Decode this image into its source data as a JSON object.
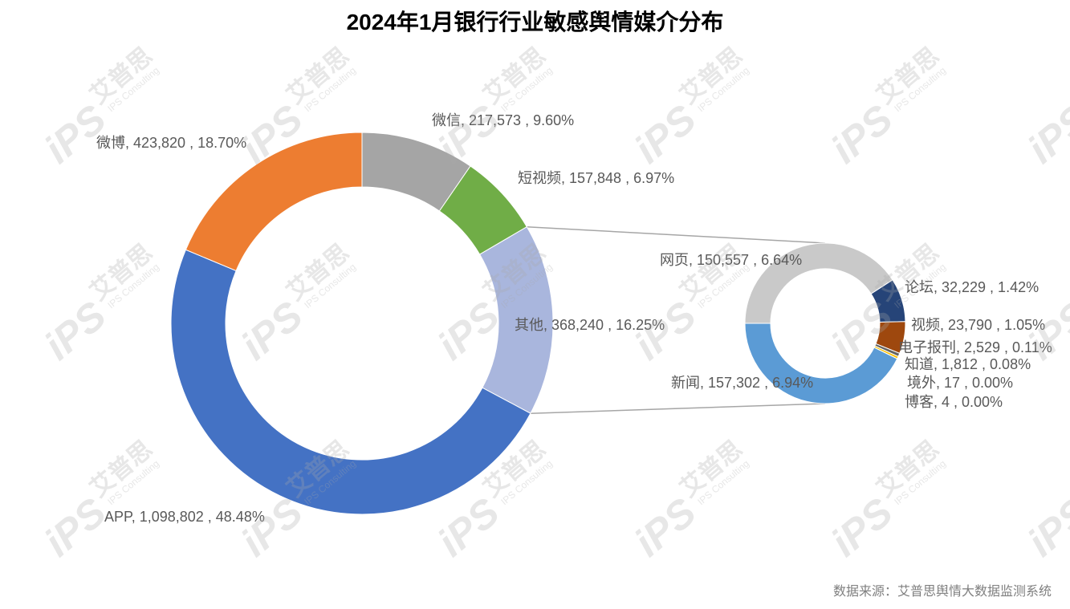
{
  "chart_data": {
    "type": "pie",
    "subtype": "doughnut with secondary doughnut",
    "title": "2024年1月银行行业敏感舆情媒介分布",
    "legend": "none",
    "primary": [
      {
        "name": "微信",
        "value": 217573,
        "percent": 9.6,
        "color": "#A5A5A5"
      },
      {
        "name": "短视频",
        "value": 157848,
        "percent": 6.97,
        "color": "#70AD47"
      },
      {
        "name": "其他",
        "value": 368240,
        "percent": 16.25,
        "color": "#A9B6DD",
        "expanded": true
      },
      {
        "name": "APP",
        "value": 1098802,
        "percent": 48.48,
        "color": "#4472C4"
      },
      {
        "name": "微博",
        "value": 423820,
        "percent": 18.7,
        "color": "#ED7D31"
      }
    ],
    "secondary": [
      {
        "name": "网页",
        "value": 150557,
        "percent": 6.64,
        "color": "#C9C9C9"
      },
      {
        "name": "论坛",
        "value": 32229,
        "percent": 1.42,
        "color": "#264478"
      },
      {
        "name": "视频",
        "value": 23790,
        "percent": 1.05,
        "color": "#9E480E"
      },
      {
        "name": "电子报刊",
        "value": 2529,
        "percent": 0.11,
        "color": "#636363"
      },
      {
        "name": "知道",
        "value": 1812,
        "percent": 0.08,
        "color": "#FFC000"
      },
      {
        "name": "境外",
        "value": 17,
        "percent": 0.0
      },
      {
        "name": "博客",
        "value": 4,
        "percent": 0.0
      },
      {
        "name": "新闻",
        "value": 157302,
        "percent": 6.94,
        "color": "#5B9BD5"
      }
    ]
  },
  "source": "数据来源：艾普思舆情大数据监测系统",
  "watermark": {
    "logo": "iPS",
    "brand": "艾普思",
    "brand_en": "IPS Consulting"
  }
}
